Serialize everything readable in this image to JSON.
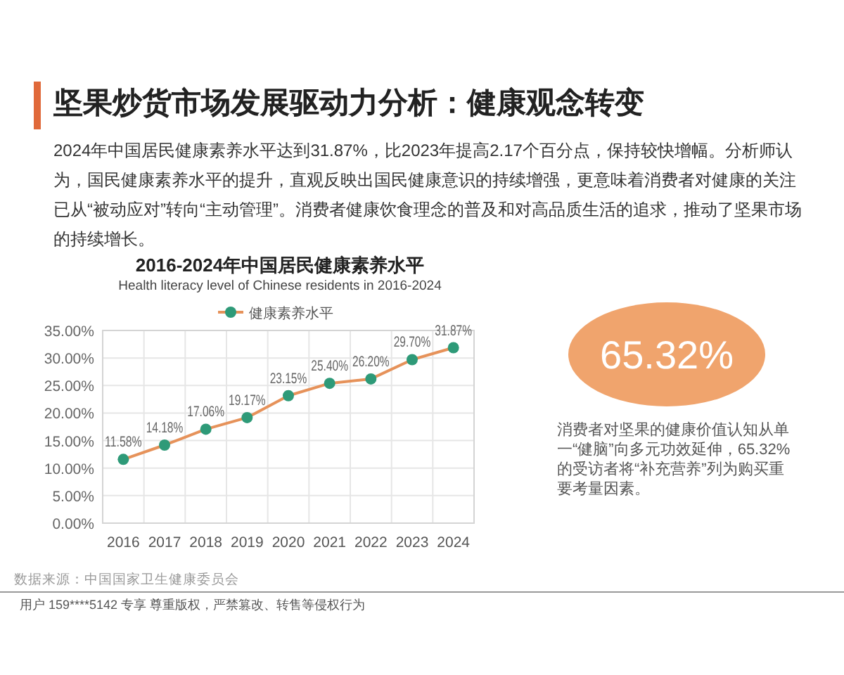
{
  "chart_data": [
    {
      "type": "other",
      "title": "坚果炒货市场发展驱动力分析：健康观念转变",
      "annotations": [
        "2024年中国居民健康素养水平达到31.87%，比2023年提高2.17个百分点，保持较快增幅。分析师认为，国民健康素养水平的提升，直观反映出国民健康意识的持续增强，更意味着消费者对健康的关注已从“被动应对”转向“主动管理”。消费者健康饮食理念的普及和对高品质生活的追求，推动了坚果市场的持续增长。",
        "用户 159****5142 专享 尊重版权，严禁篡改、转售等侵权行为"
      ]
    },
    {
      "type": "line",
      "title": "2016-2024年中国居民健康素养水平",
      "subtitle": "Health literacy level of Chinese residents in 2016-2024",
      "categories": [
        "2016",
        "2017",
        "2018",
        "2019",
        "2020",
        "2021",
        "2022",
        "2023",
        "2024"
      ],
      "series": [
        {
          "name": "健康素养水平",
          "color": "#e6925a",
          "colors": [
            "#2e9a78",
            "#2e9a78",
            "#2e9a78",
            "#2e9a78",
            "#2e9a78",
            "#2e9a78",
            "#2e9a78",
            "#2e9a78",
            "#2e9a78"
          ],
          "values": [
            11.58,
            14.18,
            17.06,
            19.17,
            23.15,
            25.4,
            26.2,
            29.7,
            31.87
          ],
          "value_labels": [
            "11.58%",
            "14.18%",
            "17.06%",
            "19.17%",
            "23.15%",
            "25.40%",
            "26.20%",
            "29.70%",
            "31.87%"
          ]
        }
      ],
      "ylim": [
        0,
        35
      ],
      "yticks": [
        {
          "value": 0,
          "label": "0.00%"
        },
        {
          "value": 5,
          "label": "5.00%"
        },
        {
          "value": 10,
          "label": "10.00%"
        },
        {
          "value": 15,
          "label": "15.00%"
        },
        {
          "value": 20,
          "label": "20.00%"
        },
        {
          "value": 25,
          "label": "25.00%"
        },
        {
          "value": 30,
          "label": "30.00%"
        },
        {
          "value": 35,
          "label": "35.00%"
        }
      ],
      "grid": true,
      "legend": "top",
      "marker": "circle",
      "line_style": "solid",
      "annotations": [
        "数据来源：中国国家卫生健康委员会"
      ]
    },
    {
      "type": "other",
      "annotations": [
        "65.32%",
        "消费者对坚果的健康价值认知从单一“健脑”向多元功效延伸，65.32%的受访者将“补充营养”列为购买重要考量因素。"
      ]
    }
  ]
}
